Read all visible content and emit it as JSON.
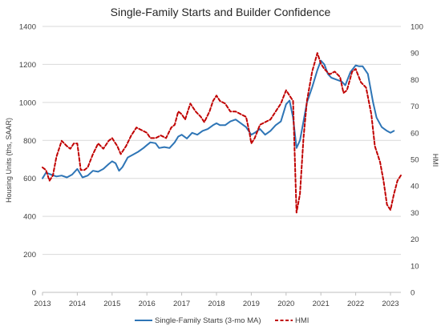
{
  "chart_data": {
    "type": "line",
    "title": "Single-Family Starts and Builder Confidence",
    "ylabel_left": "Housing Units (ths, SAAR)",
    "ylabel_right": "HMI",
    "ylim_left": [
      0,
      1400
    ],
    "ylim_right": [
      0,
      100
    ],
    "y_ticks_left": [
      "0",
      "200",
      "400",
      "600",
      "800",
      "1000",
      "1200",
      "1400"
    ],
    "y_ticks_right": [
      "0",
      "10",
      "20",
      "30",
      "40",
      "50",
      "60",
      "70",
      "80",
      "90",
      "100"
    ],
    "x_ticks": [
      "2013",
      "2014",
      "2015",
      "2016",
      "2017",
      "2018",
      "2019",
      "2020",
      "2021",
      "2022",
      "2023"
    ],
    "xlim": [
      2013.0,
      2023.3
    ],
    "grid": "horizontal",
    "legend_position": "bottom",
    "colors": {
      "starts": "#2e75b6",
      "hmi": "#c00000"
    },
    "series": [
      {
        "name": "Single-Family Starts (3-mo MA)",
        "axis": "left",
        "style": "solid",
        "points": [
          [
            2013.0,
            600
          ],
          [
            2013.1,
            630
          ],
          [
            2013.25,
            620
          ],
          [
            2013.4,
            610
          ],
          [
            2013.55,
            615
          ],
          [
            2013.7,
            605
          ],
          [
            2013.85,
            620
          ],
          [
            2014.0,
            650
          ],
          [
            2014.15,
            605
          ],
          [
            2014.3,
            615
          ],
          [
            2014.45,
            640
          ],
          [
            2014.6,
            635
          ],
          [
            2014.75,
            650
          ],
          [
            2014.9,
            675
          ],
          [
            2015.0,
            690
          ],
          [
            2015.1,
            680
          ],
          [
            2015.2,
            640
          ],
          [
            2015.3,
            660
          ],
          [
            2015.45,
            710
          ],
          [
            2015.6,
            725
          ],
          [
            2015.75,
            740
          ],
          [
            2015.9,
            760
          ],
          [
            2016.0,
            775
          ],
          [
            2016.1,
            790
          ],
          [
            2016.25,
            785
          ],
          [
            2016.35,
            760
          ],
          [
            2016.5,
            765
          ],
          [
            2016.65,
            760
          ],
          [
            2016.8,
            790
          ],
          [
            2016.9,
            820
          ],
          [
            2017.0,
            830
          ],
          [
            2017.15,
            810
          ],
          [
            2017.3,
            840
          ],
          [
            2017.45,
            830
          ],
          [
            2017.6,
            850
          ],
          [
            2017.75,
            860
          ],
          [
            2017.9,
            880
          ],
          [
            2018.0,
            890
          ],
          [
            2018.1,
            880
          ],
          [
            2018.25,
            880
          ],
          [
            2018.4,
            900
          ],
          [
            2018.55,
            910
          ],
          [
            2018.7,
            890
          ],
          [
            2018.85,
            870
          ],
          [
            2019.0,
            830
          ],
          [
            2019.1,
            840
          ],
          [
            2019.25,
            860
          ],
          [
            2019.4,
            830
          ],
          [
            2019.55,
            850
          ],
          [
            2019.7,
            880
          ],
          [
            2019.85,
            900
          ],
          [
            2020.0,
            990
          ],
          [
            2020.1,
            1010
          ],
          [
            2020.2,
            920
          ],
          [
            2020.3,
            760
          ],
          [
            2020.4,
            800
          ],
          [
            2020.5,
            900
          ],
          [
            2020.6,
            1000
          ],
          [
            2020.75,
            1080
          ],
          [
            2020.9,
            1170
          ],
          [
            2021.0,
            1220
          ],
          [
            2021.1,
            1200
          ],
          [
            2021.2,
            1150
          ],
          [
            2021.3,
            1130
          ],
          [
            2021.45,
            1120
          ],
          [
            2021.6,
            1110
          ],
          [
            2021.7,
            1090
          ],
          [
            2021.85,
            1160
          ],
          [
            2022.0,
            1195
          ],
          [
            2022.1,
            1190
          ],
          [
            2022.2,
            1190
          ],
          [
            2022.35,
            1150
          ],
          [
            2022.5,
            1000
          ],
          [
            2022.6,
            920
          ],
          [
            2022.75,
            870
          ],
          [
            2022.9,
            850
          ],
          [
            2023.0,
            840
          ],
          [
            2023.1,
            850
          ]
        ]
      },
      {
        "name": "HMI",
        "axis": "right",
        "style": "dashed",
        "points": [
          [
            2013.0,
            47
          ],
          [
            2013.1,
            46
          ],
          [
            2013.2,
            42
          ],
          [
            2013.3,
            44
          ],
          [
            2013.4,
            51
          ],
          [
            2013.55,
            57
          ],
          [
            2013.7,
            55
          ],
          [
            2013.8,
            54
          ],
          [
            2013.9,
            56
          ],
          [
            2014.0,
            56
          ],
          [
            2014.1,
            46
          ],
          [
            2014.2,
            46
          ],
          [
            2014.3,
            47
          ],
          [
            2014.45,
            52
          ],
          [
            2014.6,
            56
          ],
          [
            2014.75,
            54
          ],
          [
            2014.9,
            57
          ],
          [
            2015.0,
            58
          ],
          [
            2015.15,
            55
          ],
          [
            2015.25,
            52
          ],
          [
            2015.4,
            55
          ],
          [
            2015.55,
            59
          ],
          [
            2015.7,
            62
          ],
          [
            2015.85,
            61
          ],
          [
            2016.0,
            60
          ],
          [
            2016.1,
            58
          ],
          [
            2016.25,
            58
          ],
          [
            2016.4,
            59
          ],
          [
            2016.55,
            58
          ],
          [
            2016.7,
            62
          ],
          [
            2016.8,
            63
          ],
          [
            2016.9,
            68
          ],
          [
            2017.0,
            67
          ],
          [
            2017.1,
            65
          ],
          [
            2017.25,
            71
          ],
          [
            2017.4,
            68
          ],
          [
            2017.55,
            66
          ],
          [
            2017.65,
            64
          ],
          [
            2017.8,
            68
          ],
          [
            2017.9,
            72
          ],
          [
            2018.0,
            74
          ],
          [
            2018.1,
            72
          ],
          [
            2018.25,
            71
          ],
          [
            2018.4,
            68
          ],
          [
            2018.55,
            68
          ],
          [
            2018.7,
            67
          ],
          [
            2018.85,
            66
          ],
          [
            2018.95,
            60
          ],
          [
            2019.0,
            56
          ],
          [
            2019.1,
            58
          ],
          [
            2019.25,
            63
          ],
          [
            2019.4,
            64
          ],
          [
            2019.55,
            65
          ],
          [
            2019.7,
            68
          ],
          [
            2019.85,
            71
          ],
          [
            2020.0,
            76
          ],
          [
            2020.1,
            74
          ],
          [
            2020.2,
            72
          ],
          [
            2020.3,
            30
          ],
          [
            2020.4,
            37
          ],
          [
            2020.5,
            58
          ],
          [
            2020.6,
            72
          ],
          [
            2020.75,
            83
          ],
          [
            2020.9,
            90
          ],
          [
            2021.0,
            86
          ],
          [
            2021.1,
            84
          ],
          [
            2021.25,
            82
          ],
          [
            2021.4,
            83
          ],
          [
            2021.55,
            81
          ],
          [
            2021.65,
            75
          ],
          [
            2021.75,
            76
          ],
          [
            2021.9,
            83
          ],
          [
            2022.0,
            84
          ],
          [
            2022.15,
            79
          ],
          [
            2022.3,
            77
          ],
          [
            2022.45,
            67
          ],
          [
            2022.55,
            55
          ],
          [
            2022.7,
            49
          ],
          [
            2022.8,
            42
          ],
          [
            2022.9,
            33
          ],
          [
            2023.0,
            31
          ],
          [
            2023.1,
            37
          ],
          [
            2023.2,
            42
          ],
          [
            2023.3,
            44
          ]
        ]
      }
    ]
  }
}
